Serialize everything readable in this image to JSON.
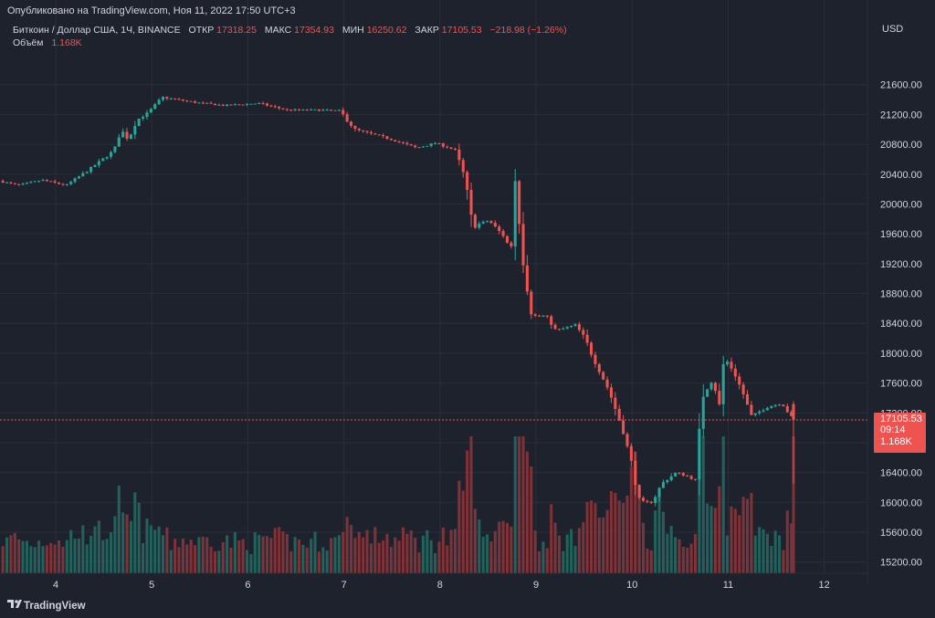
{
  "header": {
    "published": "Опубликовано на TradingView.com, Ноя 11, 2022 17:50 UTC+3",
    "symbol": "Биткоин / Доллар США, 1Ч, BINANCE",
    "open_label": "ОТКР",
    "open_value": "17318.25",
    "high_label": "МАКС",
    "high_value": "17354.93",
    "low_label": "МИН",
    "low_value": "16250.62",
    "close_label": "ЗАКР",
    "close_value": "17105.53",
    "change_value": "−218.98 (−1.26%)",
    "volume_label": "Объём",
    "volume_value": "1.168K"
  },
  "price_axis": {
    "currency": "USD",
    "last_price": "17105.53",
    "countdown": "09:14",
    "last_volume": "1.168K"
  },
  "footer": {
    "brand": "TradingView"
  },
  "colors": {
    "up": "#26a69a",
    "down": "#ef5350",
    "vol_up": "#22615c",
    "vol_down": "#7f3237",
    "background": "#1e222d",
    "grid": "#2a2e39",
    "text": "#d1d4dc"
  },
  "chart_data": {
    "type": "candlestick",
    "ylim": [
      15050,
      22000
    ],
    "yticks": [
      15200,
      15600,
      16000,
      16400,
      16800,
      17200,
      17600,
      18000,
      18400,
      18800,
      19200,
      19600,
      20000,
      20400,
      20800,
      21200,
      21600
    ],
    "ytick_labels": [
      "15200.00",
      "15600.00",
      "16000.00",
      "16400.00",
      "16800.00",
      "17200.00",
      "17600.00",
      "18000.00",
      "18400.00",
      "18800.00",
      "19200.00",
      "19600.00",
      "20000.00",
      "20400.00",
      "20800.00",
      "21200.00",
      "21600.00"
    ],
    "x_range_days": [
      3.42,
      12.45
    ],
    "xticks": [
      4,
      5,
      6,
      7,
      8,
      9,
      10,
      11,
      12
    ],
    "xtick_labels": [
      "4",
      "5",
      "6",
      "7",
      "8",
      "9",
      "10",
      "11",
      "12"
    ],
    "anchors": [
      [
        3.45,
        20310
      ],
      [
        3.65,
        20250
      ],
      [
        3.9,
        20320
      ],
      [
        4.15,
        20250
      ],
      [
        4.4,
        20470
      ],
      [
        4.55,
        20620
      ],
      [
        4.65,
        20720
      ],
      [
        4.72,
        21000
      ],
      [
        4.8,
        20860
      ],
      [
        4.88,
        21120
      ],
      [
        5.0,
        21220
      ],
      [
        5.15,
        21430
      ],
      [
        5.5,
        21360
      ],
      [
        5.8,
        21320
      ],
      [
        6.15,
        21350
      ],
      [
        6.45,
        21260
      ],
      [
        6.75,
        21260
      ],
      [
        7.0,
        21250
      ],
      [
        7.15,
        21000
      ],
      [
        7.5,
        20880
      ],
      [
        7.8,
        20750
      ],
      [
        8.0,
        20820
      ],
      [
        8.2,
        20720
      ],
      [
        8.3,
        20350
      ],
      [
        8.38,
        19700
      ],
      [
        8.55,
        19780
      ],
      [
        8.72,
        19550
      ],
      [
        8.78,
        19350
      ],
      [
        8.82,
        20410
      ],
      [
        8.92,
        19100
      ],
      [
        9.0,
        18500
      ],
      [
        9.15,
        18500
      ],
      [
        9.25,
        18300
      ],
      [
        9.45,
        18380
      ],
      [
        9.55,
        18200
      ],
      [
        9.65,
        17900
      ],
      [
        9.8,
        17500
      ],
      [
        9.95,
        16950
      ],
      [
        10.05,
        16450
      ],
      [
        10.12,
        16000
      ],
      [
        10.25,
        16000
      ],
      [
        10.35,
        16250
      ],
      [
        10.5,
        16400
      ],
      [
        10.62,
        16350
      ],
      [
        10.7,
        16300
      ],
      [
        10.78,
        17450
      ],
      [
        10.88,
        17650
      ],
      [
        10.95,
        17300
      ],
      [
        11.0,
        17950
      ],
      [
        11.1,
        17750
      ],
      [
        11.2,
        17450
      ],
      [
        11.28,
        17150
      ],
      [
        11.45,
        17280
      ],
      [
        11.6,
        17330
      ],
      [
        11.72,
        17105
      ]
    ],
    "last_candle": {
      "open": 17318.25,
      "high": 17354.93,
      "low": 16250.62,
      "close": 17105.53,
      "volume": 1168
    },
    "volume_note": "per-candle volume bars; last bar labeled 1.168K"
  }
}
